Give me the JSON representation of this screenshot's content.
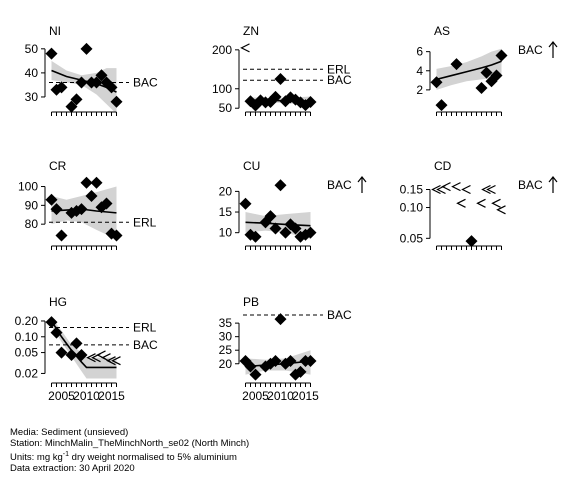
{
  "chart_data": [
    {
      "type": "scatter",
      "title": "NI",
      "scale": "linear",
      "ylim": [
        25,
        52
      ],
      "ticks": [
        30,
        40,
        50
      ],
      "tick_labels": [
        "30",
        "40",
        "50"
      ],
      "points": [
        [
          2003,
          48
        ],
        [
          2004,
          33
        ],
        [
          2005,
          34
        ],
        [
          2007,
          26
        ],
        [
          2008,
          29
        ],
        [
          2009,
          36
        ],
        [
          2010,
          50
        ],
        [
          2011,
          36
        ],
        [
          2012,
          36
        ],
        [
          2013,
          39
        ],
        [
          2014,
          36
        ],
        [
          2015,
          34
        ],
        [
          2016,
          28
        ]
      ],
      "trend": [
        [
          2003,
          41
        ],
        [
          2006,
          38.5
        ],
        [
          2009,
          37
        ],
        [
          2012,
          35.5
        ],
        [
          2014,
          34
        ],
        [
          2016,
          32
        ]
      ],
      "ci_upper": [
        [
          2003,
          45
        ],
        [
          2006,
          41
        ],
        [
          2009,
          39
        ],
        [
          2012,
          40
        ],
        [
          2014,
          42
        ],
        [
          2016,
          42
        ]
      ],
      "ci_lower": [
        [
          2003,
          37
        ],
        [
          2006,
          36
        ],
        [
          2009,
          35
        ],
        [
          2012,
          31
        ],
        [
          2014,
          27
        ],
        [
          2016,
          23
        ]
      ],
      "less_than": [],
      "ref_lines": [
        {
          "label": "BAC",
          "value": 36
        }
      ],
      "arrow_label": "",
      "arrow": false
    },
    {
      "type": "scatter",
      "title": "ZN",
      "scale": "linear",
      "ylim": [
        48,
        215
      ],
      "ticks": [
        50,
        100,
        200
      ],
      "tick_labels": [
        "50",
        "100",
        "200"
      ],
      "points": [
        [
          2004,
          68
        ],
        [
          2005,
          57
        ],
        [
          2006,
          70
        ],
        [
          2007,
          65
        ],
        [
          2008,
          66
        ],
        [
          2009,
          79
        ],
        [
          2010,
          125
        ],
        [
          2011,
          68
        ],
        [
          2012,
          78
        ],
        [
          2013,
          72
        ],
        [
          2014,
          65
        ],
        [
          2015,
          58
        ],
        [
          2016,
          66
        ]
      ],
      "trend": [
        [
          2004,
          71
        ],
        [
          2008,
          70
        ],
        [
          2012,
          69
        ],
        [
          2016,
          68
        ]
      ],
      "ci_upper": [
        [
          2004,
          78
        ],
        [
          2008,
          76
        ],
        [
          2012,
          77
        ],
        [
          2016,
          80
        ]
      ],
      "ci_lower": [
        [
          2004,
          64
        ],
        [
          2008,
          65
        ],
        [
          2012,
          62
        ],
        [
          2016,
          57
        ]
      ],
      "less_than": [
        [
          2003,
          205
        ]
      ],
      "ref_lines": [
        {
          "label": "ERL",
          "value": 150
        },
        {
          "label": "BAC",
          "value": 122
        }
      ],
      "arrow_label": "",
      "arrow": false
    },
    {
      "type": "scatter",
      "title": "AS",
      "scale": "linear",
      "ylim": [
        0,
        6.8
      ],
      "ticks": [
        2,
        4,
        6
      ],
      "tick_labels": [
        "2",
        "4",
        "6"
      ],
      "points": [
        [
          2003,
          2.8
        ],
        [
          2004,
          0.4
        ],
        [
          2007,
          4.7
        ],
        [
          2012,
          2.2
        ],
        [
          2013,
          3.8
        ],
        [
          2014,
          2.9
        ],
        [
          2015,
          3.5
        ],
        [
          2016,
          5.6
        ]
      ],
      "trend": [
        [
          2003,
          3.1
        ],
        [
          2006,
          3.5
        ],
        [
          2009,
          3.9
        ],
        [
          2012,
          4.3
        ],
        [
          2014,
          4.6
        ],
        [
          2016,
          5.0
        ]
      ],
      "ci_upper": [
        [
          2003,
          4.2
        ],
        [
          2006,
          4.5
        ],
        [
          2009,
          4.9
        ],
        [
          2012,
          5.5
        ],
        [
          2014,
          6.0
        ],
        [
          2016,
          6.3
        ]
      ],
      "ci_lower": [
        [
          2003,
          2.0
        ],
        [
          2006,
          2.5
        ],
        [
          2009,
          2.9
        ],
        [
          2012,
          3.1
        ],
        [
          2014,
          3.2
        ],
        [
          2016,
          3.6
        ]
      ],
      "less_than": [],
      "ref_lines": [],
      "arrow_label": "BAC",
      "arrow": true
    },
    {
      "type": "scatter",
      "title": "CR",
      "scale": "linear",
      "ylim": [
        70,
        104
      ],
      "ticks": [
        80,
        90,
        100
      ],
      "tick_labels": [
        "80",
        "90",
        "100"
      ],
      "points": [
        [
          2003,
          93
        ],
        [
          2004,
          88
        ],
        [
          2005,
          74
        ],
        [
          2007,
          86
        ],
        [
          2008,
          87
        ],
        [
          2009,
          88
        ],
        [
          2010,
          102
        ],
        [
          2011,
          95
        ],
        [
          2012,
          102
        ],
        [
          2013,
          89
        ],
        [
          2014,
          91
        ],
        [
          2015,
          75
        ],
        [
          2016,
          74
        ]
      ],
      "trend": [
        [
          2003,
          87
        ],
        [
          2006,
          87.5
        ],
        [
          2009,
          88
        ],
        [
          2012,
          87
        ],
        [
          2016,
          86
        ]
      ],
      "ci_upper": [
        [
          2003,
          95
        ],
        [
          2006,
          93
        ],
        [
          2009,
          95
        ],
        [
          2012,
          97
        ],
        [
          2016,
          100
        ]
      ],
      "ci_lower": [
        [
          2003,
          80
        ],
        [
          2006,
          82
        ],
        [
          2009,
          81
        ],
        [
          2012,
          77
        ],
        [
          2016,
          72
        ]
      ],
      "less_than": [],
      "ref_lines": [
        {
          "label": "ERL",
          "value": 81
        }
      ],
      "arrow_label": "",
      "arrow": false
    },
    {
      "type": "scatter",
      "title": "CU",
      "scale": "linear",
      "ylim": [
        7.5,
        23
      ],
      "ticks": [
        10,
        15,
        20
      ],
      "tick_labels": [
        "10",
        "15",
        "20"
      ],
      "points": [
        [
          2003,
          17
        ],
        [
          2004,
          9.5
        ],
        [
          2005,
          9
        ],
        [
          2007,
          12.5
        ],
        [
          2008,
          14
        ],
        [
          2009,
          11
        ],
        [
          2010,
          21.5
        ],
        [
          2011,
          10
        ],
        [
          2012,
          12
        ],
        [
          2013,
          11
        ],
        [
          2014,
          9
        ],
        [
          2015,
          9.5
        ],
        [
          2016,
          10
        ]
      ],
      "trend": [
        [
          2003,
          12.5
        ],
        [
          2007,
          12.3
        ],
        [
          2011,
          12
        ],
        [
          2016,
          11.7
        ]
      ],
      "ci_upper": [
        [
          2003,
          15
        ],
        [
          2007,
          14
        ],
        [
          2011,
          14.5
        ],
        [
          2016,
          15
        ]
      ],
      "ci_lower": [
        [
          2003,
          10
        ],
        [
          2007,
          10.5
        ],
        [
          2011,
          10
        ],
        [
          2016,
          8.5
        ]
      ],
      "less_than": [],
      "ref_lines": [],
      "arrow_label": "BAC",
      "arrow": true
    },
    {
      "type": "scatter",
      "title": "CD",
      "scale": "log",
      "ylim": [
        0.045,
        0.19
      ],
      "ticks": [
        0.05,
        0.1,
        0.15
      ],
      "tick_labels": [
        "0.05",
        "0.10",
        "0.15"
      ],
      "points": [
        [
          2010,
          0.047
        ]
      ],
      "trend": [],
      "ci_upper": [],
      "ci_lower": [],
      "less_than": [
        [
          2003,
          0.15
        ],
        [
          2004,
          0.15
        ],
        [
          2005,
          0.16
        ],
        [
          2007,
          0.16
        ],
        [
          2008,
          0.11
        ],
        [
          2009,
          0.15
        ],
        [
          2012,
          0.11
        ],
        [
          2013,
          0.15
        ],
        [
          2014,
          0.15
        ],
        [
          2015,
          0.11
        ],
        [
          2016,
          0.095
        ]
      ],
      "ref_lines": [],
      "arrow_label": "BAC",
      "arrow": true
    },
    {
      "type": "scatter",
      "title": "HG",
      "scale": "log",
      "ylim": [
        0.015,
        0.26
      ],
      "ticks": [
        0.02,
        0.05,
        0.1,
        0.2
      ],
      "tick_labels": [
        "0.02",
        "0.05",
        "0.10",
        "0.20"
      ],
      "points": [
        [
          2003,
          0.19
        ],
        [
          2004,
          0.12
        ],
        [
          2005,
          0.05
        ],
        [
          2007,
          0.045
        ],
        [
          2008,
          0.075
        ],
        [
          2009,
          0.045
        ]
      ],
      "trend": [
        [
          2003,
          0.2
        ],
        [
          2005,
          0.1
        ],
        [
          2007,
          0.055
        ],
        [
          2009,
          0.033
        ],
        [
          2010,
          0.026
        ],
        [
          2016,
          0.026
        ]
      ],
      "ci_upper": [
        [
          2003,
          0.24
        ],
        [
          2005,
          0.13
        ],
        [
          2007,
          0.07
        ],
        [
          2009,
          0.05
        ],
        [
          2010,
          0.04
        ],
        [
          2016,
          0.04
        ]
      ],
      "ci_lower": [
        [
          2003,
          0.16
        ],
        [
          2005,
          0.08
        ],
        [
          2007,
          0.042
        ],
        [
          2009,
          0.022
        ],
        [
          2010,
          0.016
        ],
        [
          2016,
          0.016
        ]
      ],
      "less_than": [
        [
          2011,
          0.04
        ],
        [
          2012,
          0.04
        ],
        [
          2013,
          0.045
        ],
        [
          2014,
          0.04
        ],
        [
          2015,
          0.035
        ],
        [
          2016,
          0.035
        ]
      ],
      "ref_lines": [
        {
          "label": "ERL",
          "value": 0.15
        },
        {
          "label": "BAC",
          "value": 0.07
        }
      ],
      "arrow_label": "",
      "arrow": false
    },
    {
      "type": "scatter",
      "title": "PB",
      "scale": "linear",
      "ylim": [
        14,
        38
      ],
      "ticks": [
        20,
        25,
        30,
        35
      ],
      "tick_labels": [
        "20",
        "25",
        "30",
        "35"
      ],
      "points": [
        [
          2003,
          21
        ],
        [
          2004,
          19
        ],
        [
          2005,
          16
        ],
        [
          2007,
          19
        ],
        [
          2008,
          20
        ],
        [
          2009,
          21
        ],
        [
          2010,
          36.5
        ],
        [
          2011,
          20
        ],
        [
          2012,
          21
        ],
        [
          2013,
          16
        ],
        [
          2014,
          17
        ],
        [
          2015,
          21
        ],
        [
          2016,
          21
        ]
      ],
      "trend": [
        [
          2003,
          19
        ],
        [
          2007,
          19.5
        ],
        [
          2011,
          20
        ],
        [
          2016,
          21
        ]
      ],
      "ci_upper": [
        [
          2003,
          22
        ],
        [
          2007,
          21.5
        ],
        [
          2011,
          22
        ],
        [
          2016,
          25
        ]
      ],
      "ci_lower": [
        [
          2003,
          16
        ],
        [
          2007,
          17.5
        ],
        [
          2011,
          17.5
        ],
        [
          2016,
          16
        ]
      ],
      "less_than": [],
      "ref_lines": [
        {
          "label": "BAC",
          "value": 38
        }
      ],
      "arrow_label": "BAC",
      "arrow": false
    }
  ],
  "x_axis": {
    "xlim": [
      2002.5,
      2017.5
    ],
    "ticks": [
      2003,
      2004,
      2005,
      2006,
      2007,
      2008,
      2009,
      2010,
      2011,
      2012,
      2013,
      2014,
      2015,
      2016
    ],
    "tick_labels": [
      {
        "value": 2005,
        "label": "2005"
      },
      {
        "value": 2010,
        "label": "2010"
      },
      {
        "value": 2015,
        "label": "2015"
      }
    ]
  },
  "footer": {
    "media": "Media: Sediment (unsieved)",
    "station": "Station: MinchMalin_TheMinchNorth_se02 (North Minch)",
    "units_prefix": "Units:  mg kg",
    "units_sup": "-1",
    "units_suffix": " dry weight normalised to 5% aluminium",
    "extraction": "Data extraction: 30 April 2020"
  }
}
